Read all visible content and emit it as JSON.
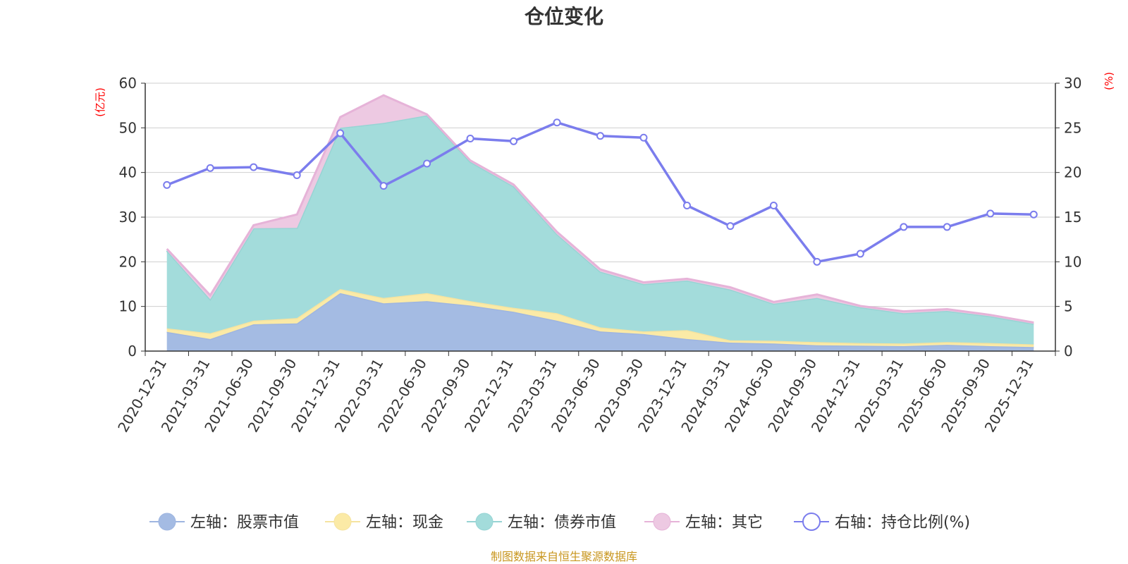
{
  "chart_data": {
    "type": "area",
    "title": "仓位变化",
    "left_axis_unit": "(亿元)",
    "right_axis_unit": "(%)",
    "left_ylim": [
      0,
      60
    ],
    "left_ticks": [
      "0",
      "10",
      "20",
      "30",
      "40",
      "50",
      "60"
    ],
    "right_ylim": [
      0,
      30
    ],
    "right_ticks": [
      "0",
      "5",
      "10",
      "15",
      "20",
      "25",
      "30"
    ],
    "categories": [
      "2020-12-31",
      "2021-03-31",
      "2021-06-30",
      "2021-09-30",
      "2021-12-31",
      "2022-03-31",
      "2022-06-30",
      "2022-09-30",
      "2022-12-31",
      "2023-03-31",
      "2023-06-30",
      "2023-09-30",
      "2023-12-31",
      "2024-03-31",
      "2024-06-30",
      "2024-09-30",
      "2024-12-31",
      "2025-03-31",
      "2025-06-30",
      "2025-09-30",
      "2025-12-31"
    ],
    "stacked_series": [
      {
        "name": "左轴：股票市值",
        "color": "#a4bbe3",
        "line": "#9eb5e0",
        "values": [
          4.3,
          2.7,
          6.0,
          6.2,
          13.0,
          10.7,
          11.2,
          10.2,
          8.8,
          6.8,
          4.4,
          3.8,
          2.7,
          1.9,
          1.7,
          1.3,
          1.2,
          1.1,
          1.4,
          1.1,
          0.9
        ]
      },
      {
        "name": "左轴：现金",
        "color": "#fbeaa6",
        "line": "#f5e3a0",
        "values": [
          0.8,
          1.3,
          0.8,
          1.2,
          0.9,
          1.2,
          1.8,
          1.0,
          0.9,
          1.7,
          0.9,
          0.6,
          2.0,
          0.5,
          0.6,
          0.7,
          0.6,
          0.6,
          0.6,
          0.7,
          0.6
        ]
      },
      {
        "name": "左轴：债券市值",
        "color": "#a3dcdb",
        "line": "#97d4d4",
        "values": [
          17.4,
          7.6,
          20.7,
          20.2,
          36.1,
          39.2,
          39.8,
          31.2,
          27.2,
          17.7,
          12.5,
          10.6,
          11.1,
          11.4,
          8.3,
          9.9,
          8.0,
          6.8,
          7.0,
          6.0,
          4.6
        ]
      },
      {
        "name": "左轴：其它",
        "color": "#edc9e2",
        "line": "#e6b3d8",
        "values": [
          0.4,
          0.9,
          0.7,
          3.0,
          2.4,
          6.2,
          0.2,
          0.3,
          0.4,
          0.5,
          0.5,
          0.4,
          0.4,
          0.5,
          0.4,
          0.8,
          0.3,
          0.4,
          0.4,
          0.3,
          0.3
        ]
      }
    ],
    "line_series": {
      "name": "右轴：持仓比例(%)",
      "color": "#7b7ded",
      "values": [
        18.6,
        20.5,
        20.6,
        19.7,
        24.4,
        18.5,
        21.0,
        23.8,
        23.5,
        25.6,
        24.1,
        23.9,
        16.3,
        14.0,
        16.3,
        10.0,
        10.9,
        13.9,
        13.9,
        15.4,
        15.3
      ]
    },
    "legend": [
      "左轴：股票市值",
      "左轴：现金",
      "左轴：债券市值",
      "左轴：其它",
      "右轴：持仓比例(%)"
    ],
    "source_note": "制图数据来自恒生聚源数据库",
    "grid": true
  }
}
